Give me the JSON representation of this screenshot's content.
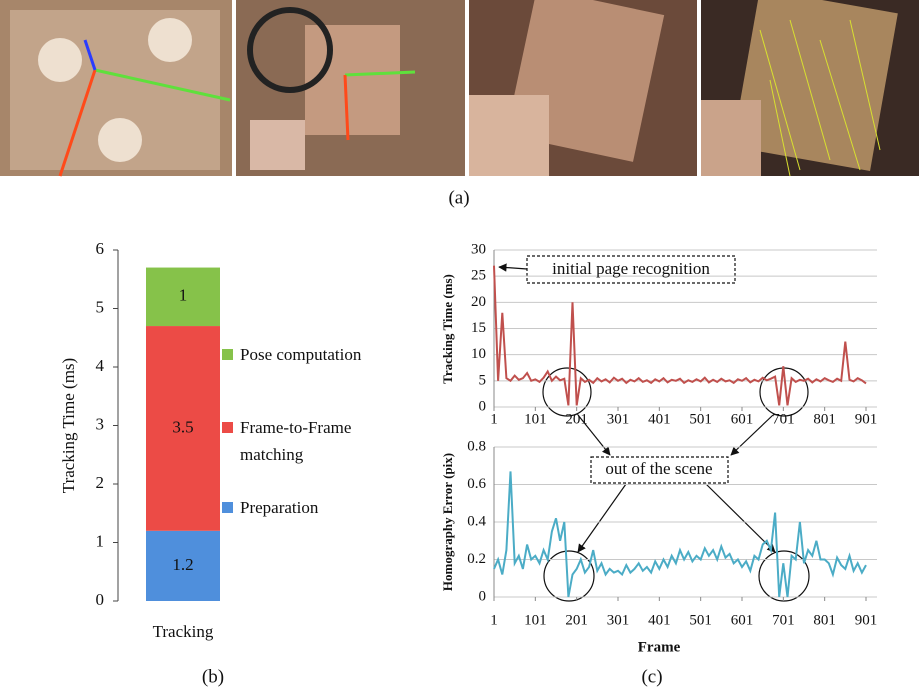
{
  "captions": [
    "(a)",
    "(b)",
    "(c)"
  ],
  "chart_data": [
    {
      "type": "stacked_bar",
      "ylabel": "Tracking Time (ms)",
      "categories": [
        "Tracking"
      ],
      "series": [
        {
          "name": "Preparation",
          "color": "#4f8fdc",
          "values": [
            1.2
          ]
        },
        {
          "name": "Frame-to-Frame matching",
          "color": "#ec4b46",
          "values": [
            3.5
          ]
        },
        {
          "name": "Pose computation",
          "color": "#86c24a",
          "values": [
            1
          ]
        }
      ],
      "ylim": [
        0,
        6
      ],
      "yticks": [
        0,
        1,
        2,
        3,
        4,
        5,
        6
      ]
    },
    {
      "type": "line",
      "ylabel": "Tracking Time (ms)",
      "color": "#c0504d",
      "annotations": [
        "initial page recognition"
      ],
      "x": [
        1,
        11,
        21,
        31,
        41,
        51,
        61,
        71,
        81,
        91,
        101,
        111,
        121,
        131,
        141,
        151,
        161,
        171,
        181,
        191,
        201,
        211,
        221,
        231,
        241,
        251,
        261,
        271,
        281,
        291,
        301,
        311,
        321,
        331,
        341,
        351,
        361,
        371,
        381,
        391,
        401,
        411,
        421,
        431,
        441,
        451,
        461,
        471,
        481,
        491,
        501,
        511,
        521,
        531,
        541,
        551,
        561,
        571,
        581,
        591,
        601,
        611,
        621,
        631,
        641,
        651,
        661,
        671,
        681,
        691,
        701,
        711,
        721,
        731,
        741,
        751,
        761,
        771,
        781,
        791,
        801,
        811,
        821,
        831,
        841,
        851,
        861,
        871,
        881,
        891,
        901
      ],
      "values": [
        27,
        5,
        18,
        5.5,
        5,
        6,
        5.2,
        5.5,
        6.5,
        5,
        5.3,
        4.8,
        5.6,
        6.8,
        5,
        5.8,
        5.1,
        5.4,
        0.3,
        20,
        0.3,
        5.5,
        4.8,
        5.2,
        4.6,
        5.5,
        4.9,
        5.3,
        4.7,
        5.6,
        5,
        5.4,
        4.6,
        5.2,
        4.9,
        5.5,
        4.8,
        5.1,
        4.6,
        5.3,
        4.9,
        5.5,
        4.7,
        5.2,
        5,
        5.4,
        4.6,
        5.1,
        4.8,
        5.3,
        4.9,
        5.6,
        4.7,
        5.2,
        4.8,
        5.4,
        4.9,
        5.1,
        4.6,
        5.3,
        5,
        5.5,
        4.7,
        5.2,
        4.9,
        5.6,
        5.1,
        5.4,
        5.8,
        0.3,
        7.8,
        0.3,
        5.5,
        4.8,
        5.2,
        5,
        5.4,
        4.7,
        5.3,
        4.9,
        5.5,
        5.1,
        4.8,
        5.4,
        5,
        12.5,
        5.2,
        4.9,
        5.5,
        5.1,
        4.5
      ],
      "xlim": [
        1,
        901
      ],
      "xticks": [
        1,
        101,
        201,
        301,
        401,
        501,
        601,
        701,
        801,
        901
      ],
      "ylim": [
        0,
        30
      ],
      "yticks": [
        0,
        5,
        10,
        15,
        20,
        25,
        30
      ],
      "grid": true
    },
    {
      "type": "line",
      "ylabel": "Homography Error (pix)",
      "xlabel": "Frame",
      "color": "#4bacc6",
      "annotations": [
        "out of the scene"
      ],
      "x": [
        1,
        11,
        21,
        31,
        41,
        51,
        61,
        71,
        81,
        91,
        101,
        111,
        121,
        131,
        141,
        151,
        161,
        171,
        181,
        191,
        201,
        211,
        221,
        231,
        241,
        251,
        261,
        271,
        281,
        291,
        301,
        311,
        321,
        331,
        341,
        351,
        361,
        371,
        381,
        391,
        401,
        411,
        421,
        431,
        441,
        451,
        461,
        471,
        481,
        491,
        501,
        511,
        521,
        531,
        541,
        551,
        561,
        571,
        581,
        591,
        601,
        611,
        621,
        631,
        641,
        651,
        661,
        671,
        681,
        691,
        701,
        711,
        721,
        731,
        741,
        751,
        761,
        771,
        781,
        791,
        801,
        811,
        821,
        831,
        841,
        851,
        861,
        871,
        881,
        891,
        901
      ],
      "values": [
        0.15,
        0.2,
        0.12,
        0.25,
        0.67,
        0.18,
        0.22,
        0.15,
        0.28,
        0.2,
        0.22,
        0.18,
        0.25,
        0.2,
        0.35,
        0.42,
        0.3,
        0.4,
        0,
        0.12,
        0.15,
        0.2,
        0.13,
        0.16,
        0.25,
        0.14,
        0.18,
        0.12,
        0.15,
        0.13,
        0.14,
        0.12,
        0.17,
        0.13,
        0.15,
        0.18,
        0.14,
        0.16,
        0.13,
        0.19,
        0.15,
        0.2,
        0.16,
        0.22,
        0.18,
        0.25,
        0.2,
        0.24,
        0.19,
        0.22,
        0.2,
        0.26,
        0.22,
        0.25,
        0.2,
        0.27,
        0.21,
        0.23,
        0.18,
        0.2,
        0.16,
        0.19,
        0.14,
        0.22,
        0.2,
        0.28,
        0.3,
        0.25,
        0.45,
        0,
        0.18,
        0,
        0.22,
        0.2,
        0.4,
        0.18,
        0.25,
        0.22,
        0.3,
        0.2,
        0.2,
        0.18,
        0.12,
        0.21,
        0.17,
        0.15,
        0.22,
        0.14,
        0.18,
        0.13,
        0.17
      ],
      "xlim": [
        1,
        901
      ],
      "xticks": [
        1,
        101,
        201,
        301,
        401,
        501,
        601,
        701,
        801,
        901
      ],
      "ylim": [
        0,
        0.8
      ],
      "yticks": [
        0,
        0.2,
        0.4,
        0.6,
        0.8
      ],
      "grid": true
    }
  ]
}
